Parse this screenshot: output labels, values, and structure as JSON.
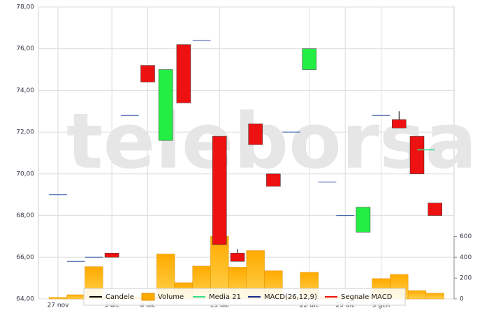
{
  "chart_data": {
    "type": "candlestick",
    "watermark": "teleborsa",
    "categories": [
      "27 nov",
      null,
      null,
      "3 dic",
      null,
      "8 dic",
      null,
      null,
      null,
      "15 dic",
      null,
      null,
      null,
      null,
      "22 dic",
      null,
      "29 dic",
      null,
      "5 gen",
      null,
      null,
      null
    ],
    "candles": {
      "name": "Candele",
      "color": "#000000",
      "up_color": "#22ee44",
      "down_color": "#ee1111",
      "flat_color": "#3355aa",
      "open": [
        69.0,
        65.8,
        66.0,
        66.2,
        72.8,
        75.2,
        71.6,
        76.2,
        76.4,
        71.8,
        66.2,
        72.4,
        70.0,
        72.0,
        75.0,
        69.6,
        68.0,
        67.2,
        72.8,
        72.6,
        71.8,
        68.6
      ],
      "close": [
        69.0,
        65.8,
        66.0,
        66.0,
        72.8,
        74.4,
        75.0,
        73.4,
        76.4,
        66.6,
        65.8,
        71.4,
        69.4,
        72.0,
        76.0,
        69.6,
        68.0,
        68.4,
        72.8,
        72.2,
        70.0,
        68.0
      ],
      "high": [
        null,
        null,
        null,
        null,
        null,
        null,
        null,
        null,
        null,
        null,
        66.4,
        null,
        null,
        null,
        null,
        null,
        null,
        null,
        null,
        73.0,
        null,
        null
      ]
    },
    "volume": {
      "name": "Volume",
      "color": "#ffaa00",
      "axis": "y2",
      "values": [
        15,
        40,
        310,
        20,
        20,
        20,
        430,
        155,
        315,
        600,
        305,
        465,
        270,
        20,
        255,
        20,
        20,
        20,
        195,
        235,
        80,
        55
      ]
    },
    "media21": {
      "name": "Media 21",
      "color": "#33dd88",
      "values": [
        null,
        null,
        null,
        null,
        null,
        null,
        null,
        null,
        null,
        null,
        null,
        null,
        null,
        null,
        null,
        null,
        null,
        null,
        null,
        null,
        null,
        71.15
      ]
    },
    "other_legend": [
      {
        "name": "MACD(26,12,9)",
        "color": "#1a2a88"
      },
      {
        "name": "Segnale MACD",
        "color": "#ee1111"
      }
    ],
    "ylim": [
      64,
      78
    ],
    "yticks": [
      {
        "value": 64,
        "label": "64,00"
      },
      {
        "value": 66,
        "label": "66,00"
      },
      {
        "value": 68,
        "label": "68,00"
      },
      {
        "value": 70,
        "label": "70,00"
      },
      {
        "value": 72,
        "label": "72,00"
      },
      {
        "value": 74,
        "label": "74,00"
      },
      {
        "value": 76,
        "label": "76,00"
      },
      {
        "value": 78,
        "label": "78,00"
      }
    ],
    "y2lim": [
      0,
      2800
    ],
    "y2ticks": [
      0,
      200,
      400,
      600
    ],
    "grid": true
  }
}
